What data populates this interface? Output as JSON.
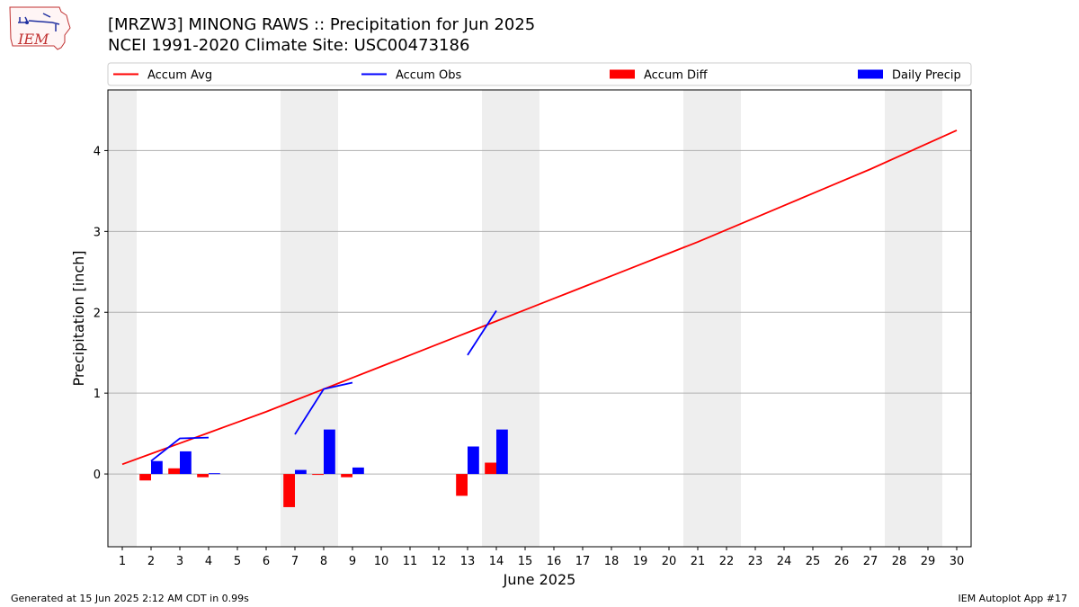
{
  "header": {
    "title_line1": "[MRZW3] MINONG RAWS :: Precipitation for Jun 2025",
    "title_line2": "NCEI 1991-2020 Climate Site: USC00473186"
  },
  "logo": {
    "text": "IEM",
    "icon": "iem-state-logo"
  },
  "footer": {
    "left": "Generated at 15 Jun 2025 2:12 AM CDT in 0.99s",
    "right": "IEM Autoplot App #17"
  },
  "colors": {
    "avg": "#ff0000",
    "obs": "#0000ff",
    "diff": "#ff0000",
    "daily": "#0000ff",
    "weekend": "#eeeeee",
    "grid": "#b0b0b0"
  },
  "chart_data": {
    "type": "bar",
    "title": "[MRZW3] MINONG RAWS :: Precipitation for Jun 2025",
    "subtitle": "NCEI 1991-2020 Climate Site: USC00473186",
    "xlabel": "June 2025",
    "ylabel": "Precipitation [inch]",
    "ylim": [
      -0.9,
      4.75
    ],
    "xlim": [
      0.5,
      30.5
    ],
    "yticks": [
      0,
      1,
      2,
      3,
      4
    ],
    "xticks": [
      1,
      2,
      3,
      4,
      5,
      6,
      7,
      8,
      9,
      10,
      11,
      12,
      13,
      14,
      15,
      16,
      17,
      18,
      19,
      20,
      21,
      22,
      23,
      24,
      25,
      26,
      27,
      28,
      29,
      30
    ],
    "grid": "horizontal",
    "legend": [
      "Accum Avg",
      "Accum Obs",
      "Accum Diff",
      "Daily Precip"
    ],
    "legend_position": "top",
    "weekend_days": [
      1,
      7,
      8,
      14,
      15,
      21,
      22,
      28,
      29
    ],
    "accum_avg": {
      "name": "Accum Avg",
      "x": [
        1,
        2,
        3,
        4,
        5,
        6,
        7,
        8,
        9,
        10,
        11,
        12,
        13,
        14,
        15,
        16,
        17,
        18,
        19,
        20,
        21,
        22,
        23,
        24,
        25,
        26,
        27,
        28,
        29,
        30
      ],
      "values": [
        0.12,
        0.25,
        0.38,
        0.51,
        0.64,
        0.77,
        0.91,
        1.05,
        1.19,
        1.33,
        1.47,
        1.61,
        1.75,
        1.89,
        2.03,
        2.17,
        2.31,
        2.45,
        2.59,
        2.73,
        2.87,
        3.02,
        3.17,
        3.32,
        3.47,
        3.62,
        3.77,
        3.93,
        4.09,
        4.25
      ]
    },
    "accum_obs_segments": [
      {
        "x": [
          2,
          3,
          4
        ],
        "values": [
          0.16,
          0.44,
          0.45
        ]
      },
      {
        "x": [
          7,
          8,
          9
        ],
        "values": [
          0.49,
          1.05,
          1.13
        ]
      },
      {
        "x": [
          13,
          14
        ],
        "values": [
          1.47,
          2.02
        ]
      }
    ],
    "accum_diff": {
      "name": "Accum Diff",
      "x": [
        2,
        3,
        4,
        7,
        8,
        9,
        13,
        14
      ],
      "values": [
        -0.08,
        0.07,
        -0.04,
        -0.41,
        -0.01,
        -0.04,
        -0.27,
        0.14
      ]
    },
    "daily_precip": {
      "name": "Daily Precip",
      "x": [
        2,
        3,
        4,
        7,
        8,
        9,
        13,
        14
      ],
      "values": [
        0.16,
        0.28,
        0.01,
        0.05,
        0.55,
        0.08,
        0.34,
        0.55
      ]
    }
  }
}
